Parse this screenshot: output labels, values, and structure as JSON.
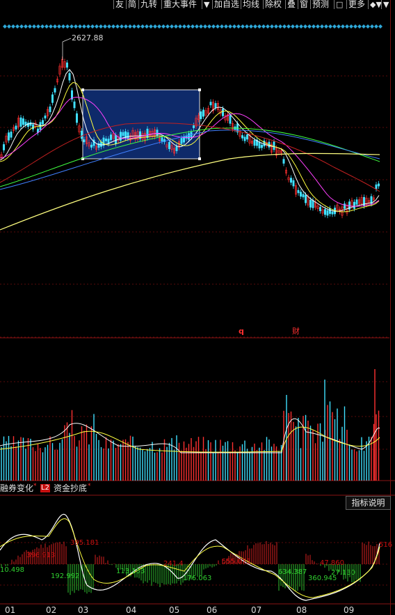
{
  "toolbar": {
    "items": [
      {
        "label": "友"
      },
      {
        "label": "简"
      },
      {
        "label": "九转"
      },
      {
        "label": "重大事件"
      },
      {
        "label": "▼"
      },
      {
        "label": "加自选"
      },
      {
        "label": "均线"
      },
      {
        "label": "除权"
      },
      {
        "label": "叠"
      },
      {
        "label": "窗"
      },
      {
        "label": "预测"
      },
      {
        "label": "□"
      },
      {
        "label": "更多"
      },
      {
        "label": "◆▼"
      },
      {
        "label": "▼"
      }
    ]
  },
  "price_chart": {
    "high_label": "2627.88",
    "event_markers": [
      "q",
      "财"
    ]
  },
  "lower_tabs": {
    "tab1": "融券变化",
    "tab1_mark": "*",
    "l2_badge": "L2",
    "tab2": "资金抄底",
    "tab2_mark": "*",
    "indicator_button": "指标说明"
  },
  "indicator_values": [
    "396.913",
    "395.181",
    "10.498",
    "192.992",
    "113.153",
    "241.4",
    "176.063",
    "555.073",
    "634.387",
    "47.860",
    "360.945",
    "27.130",
    "516"
  ],
  "chart_data": {
    "type": "candlestick",
    "x_ticks": [
      "01",
      "02",
      "03",
      "04",
      "05",
      "06",
      "07",
      "08",
      "09"
    ],
    "annotations": [
      "2627.88"
    ],
    "colors": {
      "up": "#ff3030",
      "down": "#40e0ff",
      "ma5": "#ffffff",
      "ma10": "#ffff40",
      "ma20": "#ff40ff",
      "ma30": "#40ff40",
      "ma60": "#4080ff",
      "ma120": "#c02020",
      "ma250": "#ffff80"
    },
    "grid": true
  }
}
